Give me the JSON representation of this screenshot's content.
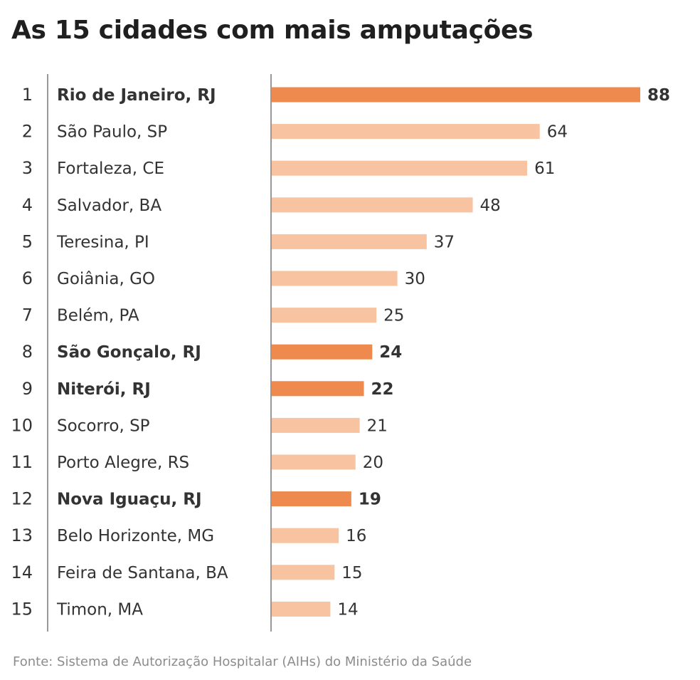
{
  "title": "As 15 cidades com mais amputações",
  "source": "Fonte: Sistema de Autorização Hospitalar (AIHs) do Ministério da Saúde",
  "colors": {
    "highlight": "#ee8a4e",
    "normal": "#f7c3a1",
    "divider": "#555555",
    "text": "#333333"
  },
  "chart_data": {
    "type": "bar",
    "orientation": "horizontal",
    "ranks": [
      "1",
      "2",
      "3",
      "4",
      "5",
      "6",
      "7",
      "8",
      "9",
      "10",
      "11",
      "12",
      "13",
      "14",
      "15"
    ],
    "categories": [
      "Rio de Janeiro, RJ",
      "São Paulo, SP",
      "Fortaleza, CE",
      "Salvador, BA",
      "Teresina, PI",
      "Goiânia, GO",
      "Belém, PA",
      "São Gonçalo, RJ",
      "Niterói, RJ",
      "Socorro, SP",
      "Porto Alegre, RS",
      "Nova Iguaçu, RJ",
      "Belo Horizonte, MG",
      "Feira de Santana, BA",
      "Timon, MA"
    ],
    "values": [
      88,
      64,
      61,
      48,
      37,
      30,
      25,
      24,
      22,
      21,
      20,
      19,
      16,
      15,
      14
    ],
    "highlighted": [
      true,
      false,
      false,
      false,
      false,
      false,
      false,
      true,
      true,
      false,
      false,
      true,
      false,
      false,
      false
    ],
    "xlim": [
      0,
      88
    ],
    "grid": false,
    "legend": "none"
  }
}
